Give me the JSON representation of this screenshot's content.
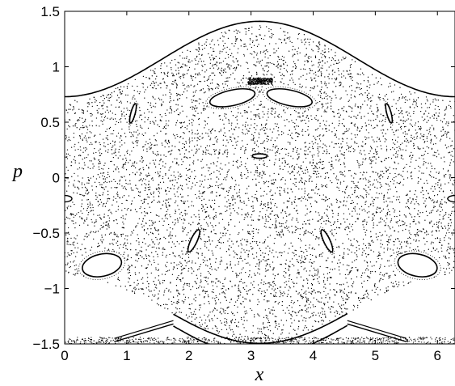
{
  "chart_data": {
    "type": "scatter",
    "title": "",
    "xlabel": "x",
    "ylabel": "p",
    "xlim": [
      0,
      6.283
    ],
    "ylim": [
      -1.5,
      1.5
    ],
    "x_ticks": [
      "0",
      "1",
      "2",
      "3",
      "4",
      "5",
      "6"
    ],
    "x_tick_values": [
      0,
      1,
      2,
      3,
      4,
      5,
      6
    ],
    "y_ticks": [
      "1.5",
      "1",
      "0.5",
      "0",
      "−0.5",
      "−1",
      "−1.5"
    ],
    "y_tick_values": [
      1.5,
      1,
      0.5,
      0,
      -0.5,
      -1,
      -1.5
    ],
    "grid": false,
    "legend": "none",
    "marker_color": "#000000",
    "chaotic_sea": {
      "upper_boundary_curve": "p = 1.065 - 0.34*cos(x)",
      "lower_boundary_curve": "p = -1.18 + 0.3*cos(x)"
    },
    "invariant_curves": [
      {
        "name": "upper-rotational",
        "formula": "p = 1.07 - 0.34*cos(x)",
        "x_range": [
          0,
          6.283
        ]
      },
      {
        "name": "lower-rotational-1",
        "formula": "p = -1.175 + 0.32*cos(x)",
        "x_range": [
          1.75,
          4.55
        ]
      },
      {
        "name": "lower-rotational-2",
        "formula": "p = -1.28 + 0.33*cos(x)",
        "x_range": [
          1.75,
          4.55
        ]
      }
    ],
    "islands": [
      {
        "name": "upper-left-lobe",
        "center": [
          2.7,
          0.72
        ],
        "radius": [
          0.37,
          0.07
        ],
        "tilt_deg": -12
      },
      {
        "name": "upper-right-lobe",
        "center": [
          3.62,
          0.72
        ],
        "radius": [
          0.37,
          0.07
        ],
        "tilt_deg": 12
      },
      {
        "name": "small-left",
        "center": [
          1.1,
          0.58
        ],
        "radius": [
          0.035,
          0.09
        ],
        "tilt_deg": 15
      },
      {
        "name": "small-right",
        "center": [
          5.22,
          0.58
        ],
        "radius": [
          0.035,
          0.09
        ],
        "tilt_deg": -15
      },
      {
        "name": "center-dome",
        "center": [
          3.14,
          0.195
        ],
        "radius": [
          0.12,
          0.02
        ],
        "tilt_deg": 0
      },
      {
        "name": "mid-left",
        "center": [
          2.08,
          -0.57
        ],
        "radius": [
          0.05,
          0.11
        ],
        "tilt_deg": 25
      },
      {
        "name": "mid-right",
        "center": [
          4.22,
          -0.57
        ],
        "radius": [
          0.05,
          0.11
        ],
        "tilt_deg": -25
      },
      {
        "name": "lower-left",
        "center": [
          0.6,
          -0.79
        ],
        "radius": [
          0.32,
          0.1
        ],
        "tilt_deg": -12
      },
      {
        "name": "lower-right",
        "center": [
          5.68,
          -0.79
        ],
        "radius": [
          0.32,
          0.1
        ],
        "tilt_deg": 12
      }
    ],
    "edge_islands": [
      {
        "name": "left-edge",
        "center": [
          0,
          -0.19
        ]
      },
      {
        "name": "right-edge",
        "center": [
          6.283,
          -0.19
        ]
      }
    ]
  }
}
